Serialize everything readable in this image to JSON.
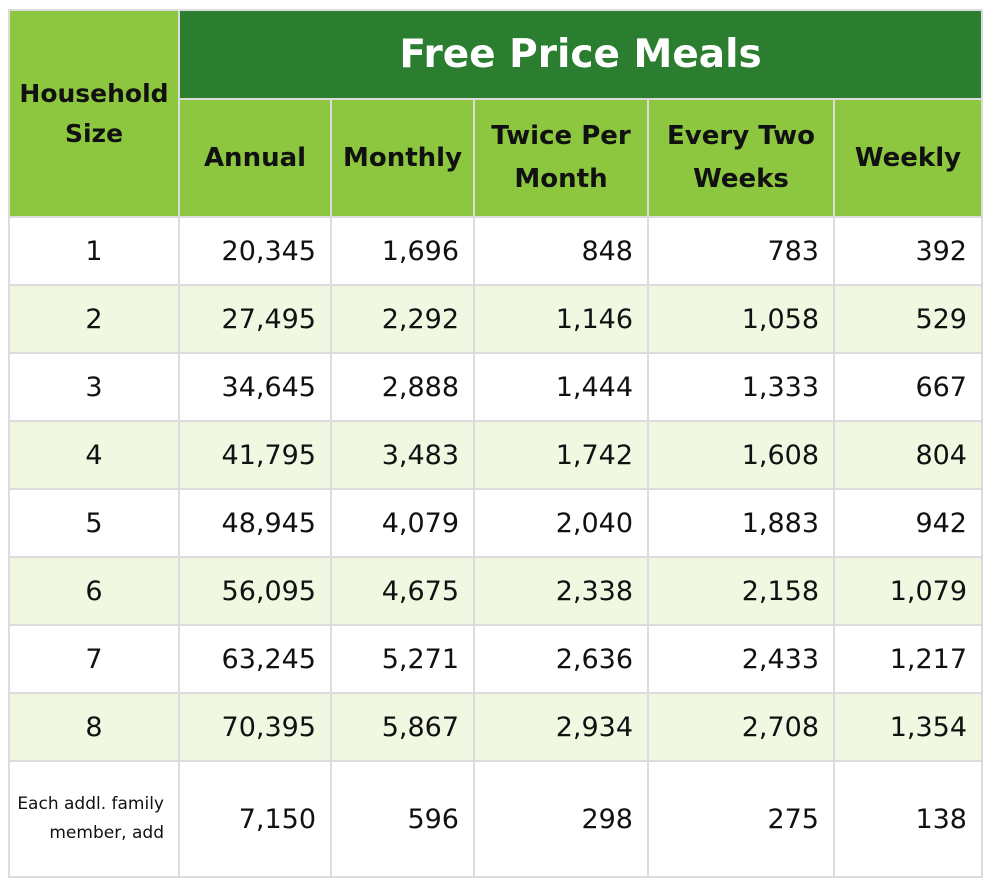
{
  "header": {
    "household_size": "Household Size",
    "title": "Free Price Meals",
    "columns": [
      "Annual",
      "Monthly",
      "Twice Per Month",
      "Every Two Weeks",
      "Weekly"
    ]
  },
  "rows": [
    {
      "size": "1",
      "annual": "20,345",
      "monthly": "1,696",
      "twice_per_month": "848",
      "every_two_weeks": "783",
      "weekly": "392"
    },
    {
      "size": "2",
      "annual": "27,495",
      "monthly": "2,292",
      "twice_per_month": "1,146",
      "every_two_weeks": "1,058",
      "weekly": "529"
    },
    {
      "size": "3",
      "annual": "34,645",
      "monthly": "2,888",
      "twice_per_month": "1,444",
      "every_two_weeks": "1,333",
      "weekly": "667"
    },
    {
      "size": "4",
      "annual": "41,795",
      "monthly": "3,483",
      "twice_per_month": "1,742",
      "every_two_weeks": "1,608",
      "weekly": "804"
    },
    {
      "size": "5",
      "annual": "48,945",
      "monthly": "4,079",
      "twice_per_month": "2,040",
      "every_two_weeks": "1,883",
      "weekly": "942"
    },
    {
      "size": "6",
      "annual": "56,095",
      "monthly": "4,675",
      "twice_per_month": "2,338",
      "every_two_weeks": "2,158",
      "weekly": "1,079"
    },
    {
      "size": "7",
      "annual": "63,245",
      "monthly": "5,271",
      "twice_per_month": "2,636",
      "every_two_weeks": "2,433",
      "weekly": "1,217"
    },
    {
      "size": "8",
      "annual": "70,395",
      "monthly": "5,867",
      "twice_per_month": "2,934",
      "every_two_weeks": "2,708",
      "weekly": "1,354"
    }
  ],
  "additional": {
    "label": "Each addl. family member, add",
    "annual": "7,150",
    "monthly": "596",
    "twice_per_month": "298",
    "every_two_weeks": "275",
    "weekly": "138"
  },
  "colors": {
    "title_bg": "#2b7d2f",
    "header_bg": "#8dc63f",
    "alt_row_bg": "#f1f8e1",
    "border": "#dcdcdc"
  }
}
